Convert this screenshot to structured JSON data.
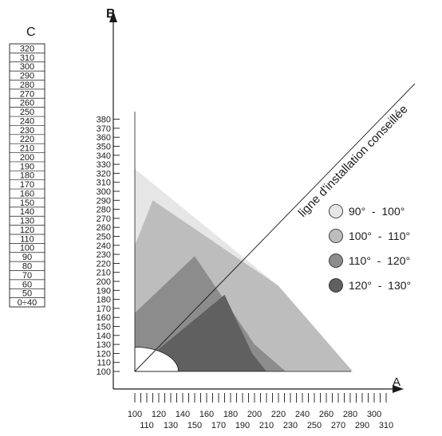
{
  "axis_b_label": "B",
  "axis_a_label": "A",
  "column_c": {
    "header": "C",
    "cells": [
      "320",
      "310",
      "300",
      "290",
      "280",
      "270",
      "260",
      "250",
      "240",
      "230",
      "220",
      "210",
      "200",
      "190",
      "180",
      "170",
      "160",
      "150",
      "140",
      "130",
      "120",
      "110",
      "100",
      "90",
      "80",
      "70",
      "60",
      "50",
      "0÷40"
    ]
  },
  "y_ticks": [
    "380",
    "370",
    "360",
    "350",
    "340",
    "330",
    "320",
    "310",
    "300",
    "290",
    "280",
    "270",
    "260",
    "250",
    "240",
    "230",
    "220",
    "210",
    "200",
    "190",
    "180",
    "170",
    "160",
    "150",
    "140",
    "130",
    "120",
    "110",
    "100"
  ],
  "x_ticks_top": [
    "100",
    "120",
    "140",
    "160",
    "180",
    "200",
    "220",
    "240",
    "260",
    "280",
    "300"
  ],
  "x_ticks_bottom": [
    "110",
    "130",
    "150",
    "170",
    "190",
    "210",
    "230",
    "250",
    "270",
    "290",
    "310"
  ],
  "diagonal_label": "ligne d'installation conseillée",
  "legend": [
    {
      "label": "90°  -  100°",
      "color": "#e6e6e6"
    },
    {
      "label": "100°  -  110°",
      "color": "#bdbdbd"
    },
    {
      "label": "110°  -  120°",
      "color": "#8c8c8c"
    },
    {
      "label": "120°  -  130°",
      "color": "#606060"
    }
  ],
  "regions": [
    {
      "range": "90° - 100°",
      "color": "#e6e6e6",
      "outline": [
        [
          100,
          100
        ],
        [
          100,
          325
        ],
        [
          220,
          195
        ],
        [
          282,
          100
        ]
      ]
    },
    {
      "range": "100° - 110°",
      "color": "#bdbdbd",
      "outline": [
        [
          100,
          100
        ],
        [
          100,
          240
        ],
        [
          115,
          290
        ],
        [
          220,
          195
        ],
        [
          282,
          100
        ]
      ]
    },
    {
      "range": "110° - 120°",
      "color": "#8c8c8c",
      "outline": [
        [
          100,
          100
        ],
        [
          100,
          165
        ],
        [
          150,
          228
        ],
        [
          200,
          130
        ],
        [
          226,
          100
        ]
      ]
    },
    {
      "range": "120° - 130°",
      "color": "#606060",
      "outline": [
        [
          100,
          100
        ],
        [
          120,
          125
        ],
        [
          175,
          185
        ],
        [
          198,
          120
        ],
        [
          210,
          100
        ]
      ]
    }
  ],
  "white_zone_radius": 27,
  "diagonal_line": [
    [
      100,
      100
    ],
    [
      275,
      320
    ]
  ]
}
